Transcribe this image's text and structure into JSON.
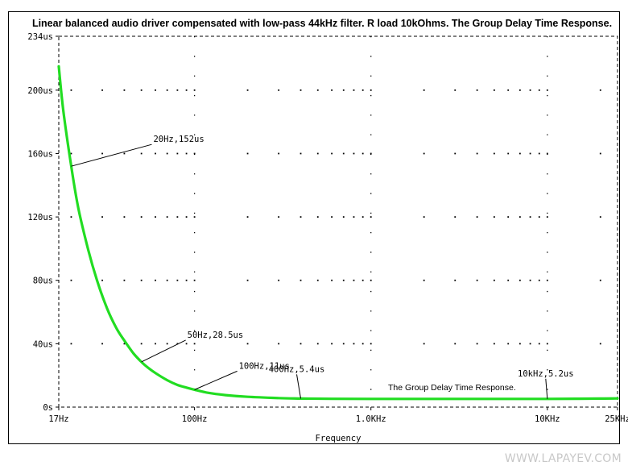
{
  "chart_data": {
    "type": "line",
    "title": "Linear balanced audio driver compensated with low-pass 44kHz filter. R load 10kOhms. The Group Delay Time Response.",
    "xlabel": "Frequency",
    "ylabel": "",
    "x_scale": "log",
    "xlim": [
      17,
      25000
    ],
    "ylim": [
      0,
      234
    ],
    "x_ticks": [
      {
        "value": 17,
        "label": "17Hz"
      },
      {
        "value": 100,
        "label": "100Hz"
      },
      {
        "value": 1000,
        "label": "1.0KHz"
      },
      {
        "value": 10000,
        "label": "10KHz"
      },
      {
        "value": 25000,
        "label": "25KHz"
      }
    ],
    "y_ticks": [
      {
        "value": 0,
        "label": "0s"
      },
      {
        "value": 40,
        "label": "40us"
      },
      {
        "value": 80,
        "label": "80us"
      },
      {
        "value": 120,
        "label": "120us"
      },
      {
        "value": 160,
        "label": "160us"
      },
      {
        "value": 200,
        "label": "200us"
      },
      {
        "value": 234,
        "label": "234us"
      }
    ],
    "grid": true,
    "series": [
      {
        "color": "#22dd22",
        "x": [
          17,
          18,
          20,
          22,
          25,
          28,
          32,
          36,
          40,
          45,
          50,
          55,
          60,
          70,
          80,
          90,
          100,
          120,
          150,
          200,
          300,
          400,
          600,
          1000,
          2000,
          5000,
          10000,
          15000,
          20000,
          25000
        ],
        "y": [
          215,
          188,
          152,
          125,
          99,
          80,
          62,
          50,
          42,
          34,
          28.5,
          24.5,
          21.5,
          17,
          14,
          12.3,
          11,
          9,
          7.6,
          6.5,
          5.7,
          5.4,
          5.25,
          5.2,
          5.2,
          5.2,
          5.2,
          5.3,
          5.4,
          5.5
        ]
      }
    ],
    "annotations": [
      {
        "x": 20,
        "y": 152,
        "text": "20Hz,152us"
      },
      {
        "x": 50,
        "y": 28.5,
        "text": "50Hz,28.5us"
      },
      {
        "x": 100,
        "y": 11,
        "text": "100Hz,11us"
      },
      {
        "x": 400,
        "y": 5.4,
        "text": "400Hz,5.4us"
      },
      {
        "x": 10000,
        "y": 5.2,
        "text": "10kHz,5.2us"
      }
    ],
    "legend_text": "The Group Delay Time Response."
  },
  "watermark": "WWW.LAPAYEV.COM"
}
